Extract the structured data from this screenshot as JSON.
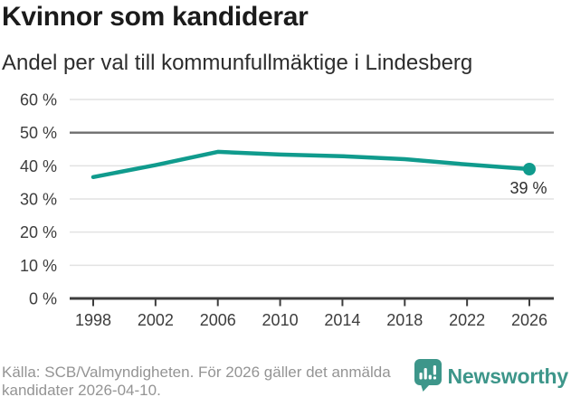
{
  "header": {
    "title": "Kvinnor som kandiderar",
    "subtitle": "Andel per val till kommunfullmäktige i Lindesberg"
  },
  "chart_data": {
    "type": "line",
    "title": "Kvinnor som kandiderar",
    "subtitle": "Andel per val till kommunfullmäktige i Lindesberg",
    "x": [
      1998,
      2002,
      2006,
      2010,
      2014,
      2018,
      2022,
      2026
    ],
    "values": [
      36.6,
      40.2,
      44.2,
      43.4,
      42.9,
      42.0,
      40.4,
      39.0
    ],
    "point_label": "39 %",
    "xlabel": "",
    "ylabel": "",
    "ylim": [
      0,
      60
    ],
    "yticks": [
      0,
      10,
      20,
      30,
      40,
      50,
      60
    ],
    "ytick_format": "{v} %",
    "xticks": [
      1998,
      2002,
      2006,
      2010,
      2014,
      2018,
      2022,
      2026
    ],
    "grid": true,
    "emphasized_gridline": 50,
    "legend_position": "none",
    "marker_on_last_point_only": true
  },
  "footer": {
    "source": "Källa: SCB/Valmyndigheten. För 2026 gäller det anmälda kandidater 2026-04-10.",
    "brand": "Newsworthy"
  },
  "colors": {
    "line": "#109b8d",
    "brand_teal": "#3d968a",
    "grid_light": "#e2e2e2",
    "grid_dark": "#6e6e6e",
    "axis": "#3d3d3d",
    "title_text": "#1b1b1b",
    "subtitle_text": "#2d2d2d",
    "footer_text": "#949494"
  }
}
